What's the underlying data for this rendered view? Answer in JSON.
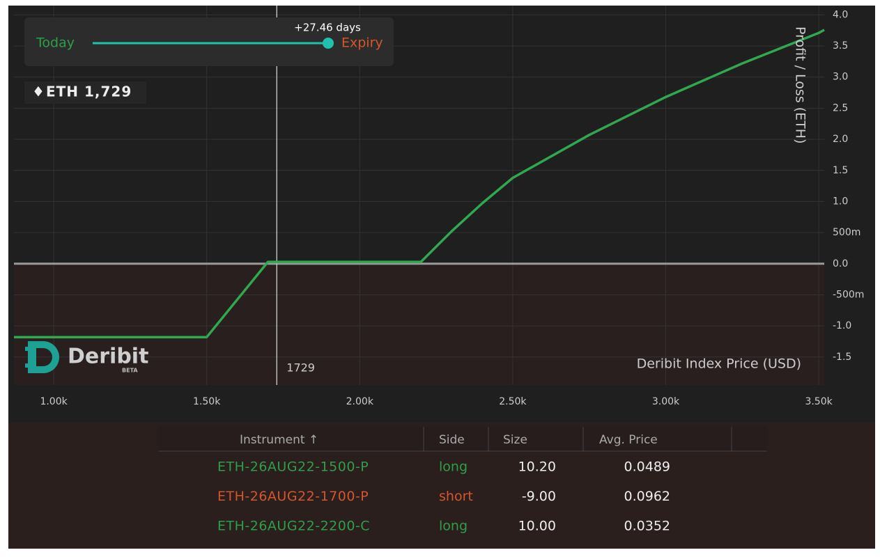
{
  "chart_data": {
    "type": "line",
    "x": [
      870,
      1500,
      1700,
      2200,
      2300,
      2400,
      2500,
      2750,
      3000,
      3250,
      3500,
      3518
    ],
    "series": [
      {
        "color": "#2fa84f",
        "values": [
          -1.18,
          -1.18,
          0.03,
          0.03,
          0.52,
          0.97,
          1.38,
          2.07,
          2.68,
          3.22,
          3.71,
          3.76
        ]
      }
    ],
    "xlim": [
      870,
      3518
    ],
    "ylim": [
      -1.95,
      4.15
    ],
    "xticks": [
      {
        "value": 1000,
        "label": "1.00k"
      },
      {
        "value": 1500,
        "label": "1.50k"
      },
      {
        "value": 2000,
        "label": "2.00k"
      },
      {
        "value": 2500,
        "label": "2.50k"
      },
      {
        "value": 3000,
        "label": "3.00k"
      },
      {
        "value": 3500,
        "label": "3.50k"
      }
    ],
    "yticks": [
      -1.5,
      {
        "value": -1,
        "label": "-1.0"
      },
      {
        "value": -0.5,
        "label": "-500m"
      },
      {
        "value": 0,
        "label": "0.0"
      },
      {
        "value": 0.5,
        "label": "500m"
      },
      {
        "value": 1,
        "label": "1.0"
      },
      1.5,
      {
        "value": 2,
        "label": "2.0"
      },
      2.5,
      {
        "value": 3,
        "label": "3.0"
      },
      3.5,
      {
        "value": 4,
        "label": "4.0"
      }
    ],
    "ylabel": "Profit / Loss   (ETH)",
    "xlabel": "Deribit Index Price   (USD)",
    "current_price": 1729,
    "grid": true
  },
  "slider": {
    "start_label": "Today",
    "end_label": "Expiry",
    "offset": "+27.46 days"
  },
  "index_price": "ETH 1,729",
  "logo": {
    "name": "Deribit",
    "badge": "BETA"
  },
  "table": {
    "columns": [
      "Instrument ↑",
      "Side",
      "Size",
      "Avg. Price"
    ],
    "rows": [
      [
        "ETH-26AUG22-1500-P",
        "long",
        "10.20",
        "0.0489"
      ],
      [
        "ETH-26AUG22-1700-P",
        "short",
        "-9.00",
        "0.0962"
      ],
      [
        "ETH-26AUG22-2200-C",
        "long",
        "10.00",
        "0.0352"
      ]
    ],
    "row_colors": [
      "#2e9e4a",
      "#d4562a",
      "#2e9e4a"
    ]
  }
}
